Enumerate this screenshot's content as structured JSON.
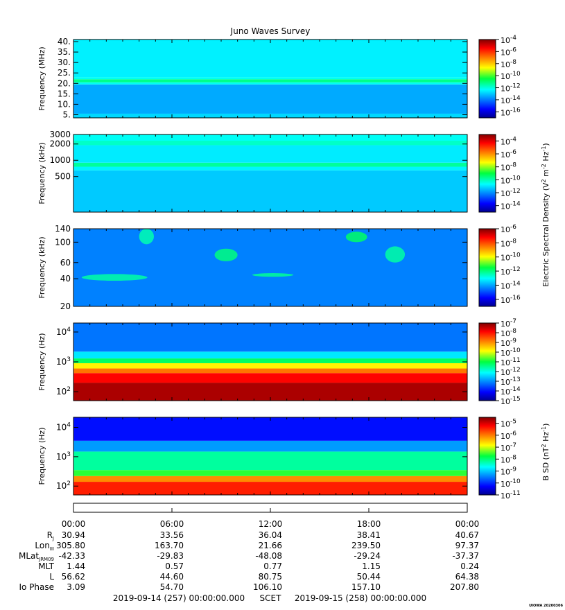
{
  "title": "Juno Waves Survey",
  "footer": {
    "start": "2019-09-14 (257) 00:00:00.000",
    "scet": "SCET",
    "end": "2019-09-15 (258) 00:00:00.000",
    "stamp": "UIOWA 20200306"
  },
  "chart_data": [
    {
      "type": "heatmap",
      "id": "p1",
      "ylabel": "Frequency (MHz)",
      "yscale": "linear",
      "ylim": [
        3.5,
        41
      ],
      "yticks": [
        {
          "v": 5,
          "t": "5."
        },
        {
          "v": 10,
          "t": "10."
        },
        {
          "v": 15,
          "t": "15."
        },
        {
          "v": 20,
          "t": "20."
        },
        {
          "v": 25,
          "t": "25."
        },
        {
          "v": 30,
          "t": "30."
        },
        {
          "v": 35,
          "t": "35."
        },
        {
          "v": 40,
          "t": "40."
        }
      ],
      "colorbar": {
        "range": [
          -17,
          -4
        ],
        "ticks": [
          -4,
          -6,
          -8,
          -10,
          -12,
          -14,
          -16
        ]
      },
      "bands": [
        {
          "from": 3.5,
          "to": 5.5,
          "level": -12.8
        },
        {
          "from": 5.5,
          "to": 19.5,
          "level": -13.4
        },
        {
          "from": 19.5,
          "to": 20.5,
          "level": -12.2
        },
        {
          "from": 20.5,
          "to": 22.0,
          "level": -11.2
        },
        {
          "from": 22.0,
          "to": 23.0,
          "level": -12.2
        },
        {
          "from": 23.0,
          "to": 41.0,
          "level": -12.5
        }
      ]
    },
    {
      "type": "heatmap",
      "id": "p2",
      "ylabel": "Frequency (kHz)",
      "yscale": "log",
      "ylim": [
        110,
        3000
      ],
      "yticks": [
        {
          "v": 500,
          "t": "500"
        },
        {
          "v": 1000,
          "t": "1000"
        },
        {
          "v": 2000,
          "t": "2000"
        },
        {
          "v": 3000,
          "t": "3000"
        }
      ],
      "colorbar": {
        "range": [
          -15,
          -3
        ],
        "ticks": [
          -4,
          -6,
          -8,
          -10,
          -12,
          -14
        ]
      },
      "bands": [
        {
          "from": 110,
          "to": 650,
          "level": -11.3
        },
        {
          "from": 650,
          "to": 760,
          "level": -10.8
        },
        {
          "from": 760,
          "to": 900,
          "level": -9.8
        },
        {
          "from": 900,
          "to": 1900,
          "level": -10.9
        },
        {
          "from": 1900,
          "to": 2300,
          "level": -10.2
        },
        {
          "from": 2300,
          "to": 3000,
          "level": -10.6
        }
      ]
    },
    {
      "type": "heatmap",
      "id": "p3",
      "ylabel": "Frequency (kHz)",
      "yscale": "log",
      "ylim": [
        20,
        140
      ],
      "yticks": [
        {
          "v": 20,
          "t": "20"
        },
        {
          "v": 40,
          "t": "40"
        },
        {
          "v": 60,
          "t": "60"
        },
        {
          "v": 100,
          "t": "100"
        },
        {
          "v": 140,
          "t": "140"
        }
      ],
      "colorbar": {
        "range": [
          -17,
          -6
        ],
        "ticks": [
          -6,
          -8,
          -10,
          -12,
          -14,
          -16
        ]
      },
      "bands": [
        {
          "from": 20,
          "to": 140,
          "level": -14.4
        }
      ],
      "features": [
        {
          "t0": 0.5,
          "t1": 4.5,
          "f0": 38,
          "f1": 45,
          "level": -12.3
        },
        {
          "t0": 8.6,
          "t1": 10.0,
          "f0": 62,
          "f1": 85,
          "level": -12.0
        },
        {
          "t0": 10.9,
          "t1": 13.4,
          "f0": 42,
          "f1": 46,
          "level": -12.2
        },
        {
          "t0": 16.6,
          "t1": 17.9,
          "f0": 100,
          "f1": 130,
          "level": -11.8
        },
        {
          "t0": 19.0,
          "t1": 20.2,
          "f0": 60,
          "f1": 90,
          "level": -12.3
        },
        {
          "t0": 4.0,
          "t1": 4.9,
          "f0": 95,
          "f1": 140,
          "level": -12.4
        }
      ]
    },
    {
      "type": "heatmap",
      "id": "p4",
      "ylabel": "Frequency (Hz)",
      "yscale": "log",
      "ylim": [
        50,
        20000
      ],
      "yticks": [
        {
          "v": 100,
          "t": "10",
          "e": "2"
        },
        {
          "v": 1000,
          "t": "10",
          "e": "3"
        },
        {
          "v": 10000,
          "t": "10",
          "e": "4"
        }
      ],
      "colorbar": {
        "range": [
          -15,
          -7
        ],
        "ticks": [
          -7,
          -8,
          -9,
          -10,
          -11,
          -12,
          -13,
          -14,
          -15
        ]
      },
      "bands": [
        {
          "from": 50,
          "to": 200,
          "level": -7.3
        },
        {
          "from": 200,
          "to": 420,
          "level": -7.9
        },
        {
          "from": 420,
          "to": 600,
          "level": -8.8
        },
        {
          "from": 600,
          "to": 900,
          "level": -9.8
        },
        {
          "from": 900,
          "to": 1300,
          "level": -11.2
        },
        {
          "from": 1300,
          "to": 2200,
          "level": -12.3
        },
        {
          "from": 2200,
          "to": 20000,
          "level": -13.2
        }
      ]
    },
    {
      "type": "heatmap",
      "id": "p5",
      "ylabel": "Frequency (Hz)",
      "yscale": "log",
      "ylim": [
        50,
        22000
      ],
      "yticks": [
        {
          "v": 100,
          "t": "10",
          "e": "2"
        },
        {
          "v": 1000,
          "t": "10",
          "e": "3"
        },
        {
          "v": 10000,
          "t": "10",
          "e": "4"
        }
      ],
      "colorbar": {
        "range": [
          -11,
          -4.5
        ],
        "ticks": [
          -5,
          -6,
          -7,
          -8,
          -9,
          -10,
          -11
        ]
      },
      "bands": [
        {
          "from": 50,
          "to": 140,
          "level": -5.4
        },
        {
          "from": 140,
          "to": 220,
          "level": -6.1
        },
        {
          "from": 220,
          "to": 350,
          "level": -7.6
        },
        {
          "from": 350,
          "to": 1500,
          "level": -8.2
        },
        {
          "from": 1500,
          "to": 3500,
          "level": -9.3
        },
        {
          "from": 3500,
          "to": 22000,
          "level": -10.2
        }
      ]
    }
  ],
  "colorbar_labels": {
    "electric": "Electric Spectral Density (V",
    "electric_units": [
      "2",
      " m",
      "-2",
      " Hz",
      "-1",
      ")"
    ],
    "magnetic": "B SD (nT",
    "magnetic_units": [
      "2",
      " Hz",
      "-1",
      ")"
    ]
  },
  "time_axis": {
    "labels": [
      "00:00",
      "06:00",
      "12:00",
      "18:00",
      "00:00"
    ],
    "range_hours": [
      0,
      24
    ]
  },
  "ephemeris": [
    {
      "name": "R",
      "sub": "J",
      "values": [
        "30.94",
        "33.56",
        "36.04",
        "38.41",
        "40.67"
      ]
    },
    {
      "name": "Lon",
      "sub": "III",
      "values": [
        "305.80",
        "163.70",
        "21.66",
        "239.50",
        "97.37"
      ]
    },
    {
      "name": "MLat",
      "sub": "JRM09",
      "values": [
        "-42.33",
        "-29.83",
        "-48.08",
        "-29.24",
        "-37.37"
      ]
    },
    {
      "name": "MLT",
      "sub": "",
      "values": [
        "1.44",
        "0.57",
        "0.77",
        "1.15",
        "0.24"
      ]
    },
    {
      "name": "L",
      "sub": "",
      "values": [
        "56.62",
        "44.60",
        "80.75",
        "50.44",
        "64.38"
      ]
    },
    {
      "name": "Io Phase",
      "sub": "",
      "values": [
        "3.09",
        "54.70",
        "106.10",
        "157.10",
        "207.80"
      ]
    }
  ]
}
